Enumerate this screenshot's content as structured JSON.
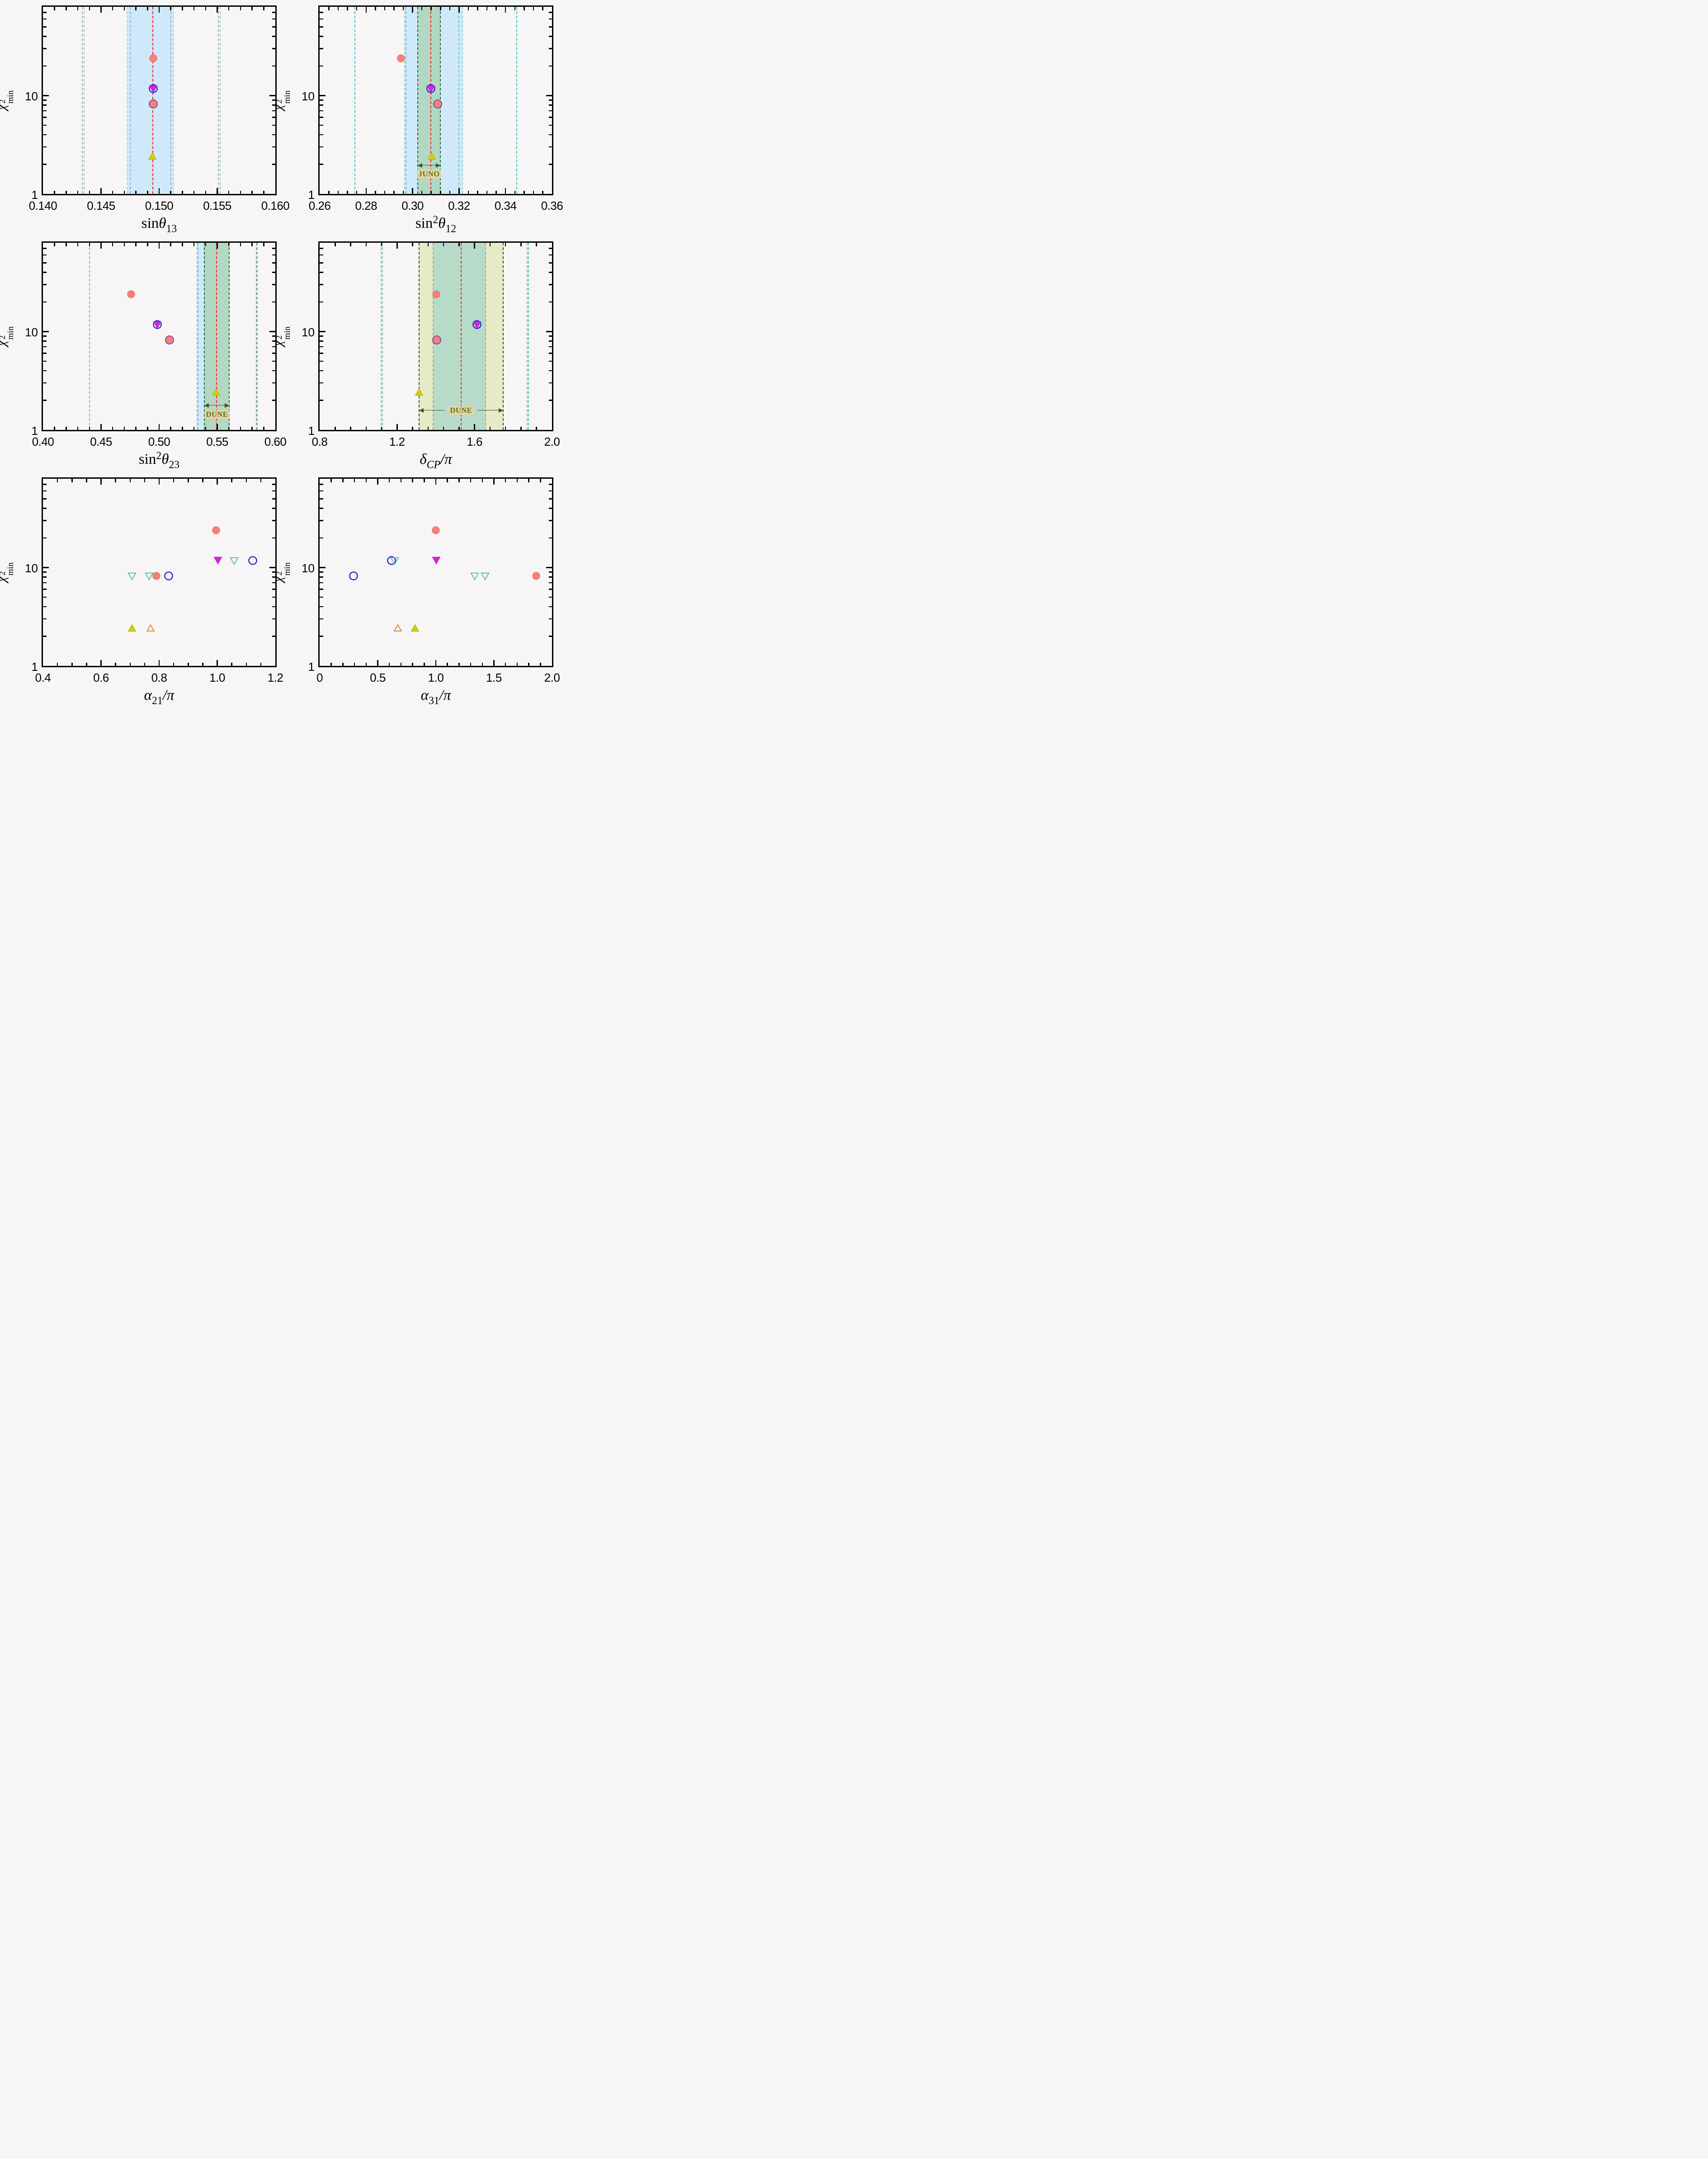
{
  "chart_data": {
    "type": "scatter",
    "title": "chi-square minima vs oscillation parameters (6-panel figure)",
    "ylabel": {
      "sym": "χ",
      "sup": "2",
      "sub": "min"
    },
    "ylim": [
      1,
      80
    ],
    "yscale": "log",
    "yticks": [
      {
        "v": 1,
        "label": "1"
      },
      {
        "v": 10,
        "label": "10"
      }
    ],
    "yminors": [
      2,
      3,
      4,
      5,
      6,
      7,
      8,
      9,
      20,
      30,
      40,
      50,
      60,
      70,
      80
    ],
    "legend": "none",
    "grid": false,
    "markers": {
      "pinkCircle": {
        "shape": "circle",
        "fill": "#f58079",
        "stroke": "#e06c67",
        "sw": 1,
        "r": 8.2,
        "name": "pink-filled-circle-marker"
      },
      "blueCircle": {
        "shape": "circle",
        "fill": "none",
        "stroke": "#2126cb",
        "sw": 2.4,
        "r": 8.6,
        "name": "blue-open-circle-marker"
      },
      "magentaDown": {
        "shape": "tri-down",
        "fill": "#da23df",
        "stroke": "#b317c2",
        "sw": 1,
        "r": 8.6,
        "name": "magenta-filled-down-triangle-marker"
      },
      "yellowUp": {
        "shape": "tri-up",
        "fill": "#d0cc12",
        "stroke": "#b5b116",
        "sw": 1,
        "r": 8.6,
        "name": "yellow-filled-up-triangle-marker"
      },
      "tealDown": {
        "shape": "tri-down",
        "fill": "none",
        "stroke": "#5fc1a4",
        "sw": 2,
        "r": 8.2,
        "name": "teal-open-down-triangle-marker"
      },
      "orangeUp": {
        "shape": "tri-up",
        "fill": "none",
        "stroke": "#d78c3e",
        "sw": 2,
        "r": 7.6,
        "name": "orange-open-up-triangle-marker"
      }
    },
    "panels": [
      {
        "name": "sin-theta13",
        "xlabel": {
          "pre": "sin",
          "sup": "",
          "sym": "θ",
          "sub": "13",
          "sub_italic": false,
          "post": ""
        },
        "xlim": [
          0.14,
          0.16
        ],
        "xticks": [
          {
            "v": 0.14,
            "label": "0.140"
          },
          {
            "v": 0.145,
            "label": "0.145"
          },
          {
            "v": 0.15,
            "label": "0.150"
          },
          {
            "v": 0.155,
            "label": "0.155"
          },
          {
            "v": 0.16,
            "label": "0.160"
          }
        ],
        "xminor": 0.001,
        "bands": [
          {
            "from": 0.14725,
            "to": 0.15125,
            "color": "#cfe9fa"
          }
        ],
        "vlines": [
          {
            "x": 0.1434,
            "color": "#a7aeaa"
          },
          {
            "x": 0.14356,
            "color": "#8ad8bd"
          },
          {
            "x": 0.14725,
            "color": "#a5e4d0"
          },
          {
            "x": 0.1475,
            "color": "#8fb4d8"
          },
          {
            "x": 0.14945,
            "color": "#ff2222",
            "w": 2.6,
            "name": "bestfit-line"
          },
          {
            "x": 0.151,
            "color": "#8fb4d8"
          },
          {
            "x": 0.15125,
            "color": "#a5e4d0"
          },
          {
            "x": 0.1551,
            "color": "#a7aeaa"
          },
          {
            "x": 0.15526,
            "color": "#8ad8bd"
          }
        ],
        "annotations": [],
        "points": [
          {
            "x": 0.1495,
            "y": 24,
            "m": "pinkCircle"
          },
          {
            "x": 0.1495,
            "y": 11.8,
            "m": "blueCircle"
          },
          {
            "x": 0.1495,
            "y": 11.8,
            "m": "magentaDown"
          },
          {
            "x": 0.1495,
            "y": 8.2,
            "m": "blueCircle"
          },
          {
            "x": 0.1495,
            "y": 8.2,
            "m": "pinkCircle"
          },
          {
            "x": 0.1494,
            "y": 2.4,
            "m": "yellowUp"
          }
        ]
      },
      {
        "name": "sin2-theta12",
        "xlabel": {
          "pre": "sin",
          "sup": "2",
          "sym": "θ",
          "sub": "12",
          "sub_italic": false,
          "post": ""
        },
        "xlim": [
          0.26,
          0.36
        ],
        "xticks": [
          {
            "v": 0.26,
            "label": "0.26"
          },
          {
            "v": 0.28,
            "label": "0.28"
          },
          {
            "v": 0.3,
            "label": "0.30"
          },
          {
            "v": 0.32,
            "label": "0.32"
          },
          {
            "v": 0.34,
            "label": "0.34"
          },
          {
            "v": 0.36,
            "label": "0.36"
          }
        ],
        "xminor": 0.004,
        "bands": [
          {
            "from": 0.2965,
            "to": 0.3215,
            "color": "#cfe9fa"
          },
          {
            "from": 0.3022,
            "to": 0.312,
            "color": "#b2d8c4"
          }
        ],
        "vlines": [
          {
            "x": 0.2752,
            "color": "#35cccc"
          },
          {
            "x": 0.2965,
            "color": "#8ad8c6"
          },
          {
            "x": 0.2972,
            "color": "#8fb4d8"
          },
          {
            "x": 0.3022,
            "color": "#256b38"
          },
          {
            "x": 0.3078,
            "color": "#ff2222",
            "w": 2.6,
            "name": "bestfit-line"
          },
          {
            "x": 0.312,
            "color": "#256b38"
          },
          {
            "x": 0.32,
            "color": "#8fb4d8"
          },
          {
            "x": 0.3215,
            "color": "#8ad8c6"
          },
          {
            "x": 0.3448,
            "color": "#35cccc"
          }
        ],
        "annotations": [
          {
            "label": "JUNO",
            "from": 0.3022,
            "to": 0.312,
            "arrow_y": 1.95,
            "label_y": 1.6,
            "split": false
          }
        ],
        "points": [
          {
            "x": 0.2951,
            "y": 24,
            "m": "pinkCircle"
          },
          {
            "x": 0.3078,
            "y": 11.8,
            "m": "blueCircle"
          },
          {
            "x": 0.3078,
            "y": 11.8,
            "m": "magentaDown"
          },
          {
            "x": 0.3107,
            "y": 8.2,
            "m": "blueCircle"
          },
          {
            "x": 0.3107,
            "y": 8.2,
            "m": "pinkCircle"
          },
          {
            "x": 0.3083,
            "y": 2.4,
            "m": "yellowUp"
          }
        ]
      },
      {
        "name": "sin2-theta23",
        "xlabel": {
          "pre": "sin",
          "sup": "2",
          "sym": "θ",
          "sub": "23",
          "sub_italic": false,
          "post": ""
        },
        "xlim": [
          0.4,
          0.6
        ],
        "xticks": [
          {
            "v": 0.4,
            "label": "0.40"
          },
          {
            "v": 0.45,
            "label": "0.45"
          },
          {
            "v": 0.5,
            "label": "0.50"
          },
          {
            "v": 0.55,
            "label": "0.55"
          },
          {
            "v": 0.6,
            "label": "0.60"
          }
        ],
        "xminor": 0.01,
        "bands": [
          {
            "from": 0.5325,
            "to": 0.539,
            "color": "#cfe9fa"
          },
          {
            "from": 0.539,
            "to": 0.5605,
            "color": "#b2d8c4"
          }
        ],
        "vlines": [
          {
            "x": 0.44,
            "color": "#74bde4"
          },
          {
            "x": 0.5325,
            "color": "#8ad8d0"
          },
          {
            "x": 0.5336,
            "color": "#8fb4d8"
          },
          {
            "x": 0.539,
            "color": "#256b38"
          },
          {
            "x": 0.5495,
            "color": "#ff2222",
            "w": 2.6,
            "name": "bestfit-line"
          },
          {
            "x": 0.5605,
            "color": "#256b38"
          },
          {
            "x": 0.5835,
            "color": "#9fa8a3"
          },
          {
            "x": 0.5845,
            "color": "#54c79b"
          }
        ],
        "annotations": [
          {
            "label": "DUNE",
            "from": 0.539,
            "to": 0.5605,
            "arrow_y": 1.78,
            "label_y": 1.44,
            "split": false
          }
        ],
        "points": [
          {
            "x": 0.476,
            "y": 24,
            "m": "pinkCircle"
          },
          {
            "x": 0.4985,
            "y": 11.8,
            "m": "blueCircle"
          },
          {
            "x": 0.4985,
            "y": 11.8,
            "m": "magentaDown"
          },
          {
            "x": 0.509,
            "y": 8.2,
            "m": "blueCircle"
          },
          {
            "x": 0.509,
            "y": 8.2,
            "m": "pinkCircle"
          },
          {
            "x": 0.549,
            "y": 2.4,
            "m": "yellowUp"
          }
        ]
      },
      {
        "name": "delta-cp",
        "xlabel": {
          "pre": "",
          "sup": "",
          "sym": "δ",
          "sub": "CP",
          "sub_italic": true,
          "post": "/π"
        },
        "xlim": [
          0.8,
          2.0
        ],
        "xticks": [
          {
            "v": 0.8,
            "label": "0.8"
          },
          {
            "v": 1.2,
            "label": "1.2"
          },
          {
            "v": 1.6,
            "label": "1.6"
          },
          {
            "v": 2.0,
            "label": "2.0"
          }
        ],
        "xminor": 0.08,
        "bands": [
          {
            "from": 1.313,
            "to": 1.748,
            "color": "#e7eac6"
          },
          {
            "from": 1.387,
            "to": 1.657,
            "color": "#b7dbc9"
          }
        ],
        "vlines": [
          {
            "x": 1.117,
            "color": "#a7aeaa"
          },
          {
            "x": 1.124,
            "color": "#7cc9b5"
          },
          {
            "x": 1.313,
            "color": "#434d22"
          },
          {
            "x": 1.387,
            "color": "#a6a6a6"
          },
          {
            "x": 1.53,
            "color": "#ff2222",
            "w": 2.6,
            "name": "bestfit-line"
          },
          {
            "x": 1.657,
            "color": "#a6a6a6"
          },
          {
            "x": 1.748,
            "color": "#434d22"
          },
          {
            "x": 1.872,
            "color": "#a6a6a6"
          },
          {
            "x": 1.879,
            "color": "#59c3ae"
          }
        ],
        "annotations": [
          {
            "label": "DUNE",
            "from": 1.313,
            "to": 1.748,
            "arrow_y": 1.57,
            "label_y": 1.57,
            "split": true
          }
        ],
        "points": [
          {
            "x": 1.402,
            "y": 24,
            "m": "pinkCircle"
          },
          {
            "x": 1.613,
            "y": 11.8,
            "m": "blueCircle"
          },
          {
            "x": 1.613,
            "y": 11.8,
            "m": "magentaDown"
          },
          {
            "x": 1.405,
            "y": 8.2,
            "m": "blueCircle"
          },
          {
            "x": 1.405,
            "y": 8.2,
            "m": "pinkCircle"
          },
          {
            "x": 1.313,
            "y": 2.4,
            "m": "yellowUp"
          }
        ]
      },
      {
        "name": "alpha21",
        "xlabel": {
          "pre": "",
          "sup": "",
          "sym": "α",
          "sub": "21",
          "sub_italic": false,
          "post": "/π"
        },
        "xlim": [
          0.4,
          1.2
        ],
        "xticks": [
          {
            "v": 0.4,
            "label": "0.4"
          },
          {
            "v": 0.6,
            "label": "0.6"
          },
          {
            "v": 0.8,
            "label": "0.8"
          },
          {
            "v": 1.0,
            "label": "1.0"
          },
          {
            "v": 1.2,
            "label": "1.2"
          }
        ],
        "xminor": 0.05,
        "bands": [],
        "vlines": [],
        "annotations": [],
        "points": [
          {
            "x": 0.996,
            "y": 24,
            "m": "pinkCircle"
          },
          {
            "x": 1.002,
            "y": 11.9,
            "m": "magentaDown"
          },
          {
            "x": 1.058,
            "y": 11.8,
            "m": "tealDown"
          },
          {
            "x": 1.122,
            "y": 11.8,
            "m": "blueCircle"
          },
          {
            "x": 0.706,
            "y": 8.2,
            "m": "tealDown"
          },
          {
            "x": 0.766,
            "y": 8.2,
            "m": "tealDown"
          },
          {
            "x": 0.791,
            "y": 8.2,
            "m": "pinkCircle"
          },
          {
            "x": 0.832,
            "y": 8.2,
            "m": "blueCircle"
          },
          {
            "x": 0.706,
            "y": 2.4,
            "m": "yellowUp"
          },
          {
            "x": 0.771,
            "y": 2.4,
            "m": "orangeUp"
          }
        ]
      },
      {
        "name": "alpha31",
        "xlabel": {
          "pre": "",
          "sup": "",
          "sym": "α",
          "sub": "31",
          "sub_italic": false,
          "post": "/π"
        },
        "xlim": [
          0,
          2.0
        ],
        "xticks": [
          {
            "v": 0,
            "label": "0"
          },
          {
            "v": 0.5,
            "label": "0.5"
          },
          {
            "v": 1.0,
            "label": "1.0"
          },
          {
            "v": 1.5,
            "label": "1.5"
          },
          {
            "v": 2.0,
            "label": "2.0"
          }
        ],
        "xminor": 0.1,
        "bands": [],
        "vlines": [],
        "annotations": [],
        "points": [
          {
            "x": 1.0,
            "y": 24,
            "m": "pinkCircle"
          },
          {
            "x": 0.618,
            "y": 11.8,
            "m": "blueCircle"
          },
          {
            "x": 0.644,
            "y": 11.8,
            "m": "tealDown"
          },
          {
            "x": 1.005,
            "y": 11.9,
            "m": "magentaDown"
          },
          {
            "x": 0.291,
            "y": 8.2,
            "m": "blueCircle"
          },
          {
            "x": 1.336,
            "y": 8.2,
            "m": "tealDown"
          },
          {
            "x": 1.425,
            "y": 8.2,
            "m": "tealDown"
          },
          {
            "x": 1.862,
            "y": 8.2,
            "m": "pinkCircle"
          },
          {
            "x": 0.672,
            "y": 2.4,
            "m": "orangeUp"
          },
          {
            "x": 0.822,
            "y": 2.4,
            "m": "yellowUp"
          }
        ]
      }
    ],
    "annotation_style": {
      "arrow_color": "#3c5226",
      "head_color": "#3c5226",
      "label_color": "#6b6b14",
      "label_bg": "#ded6a8"
    }
  }
}
